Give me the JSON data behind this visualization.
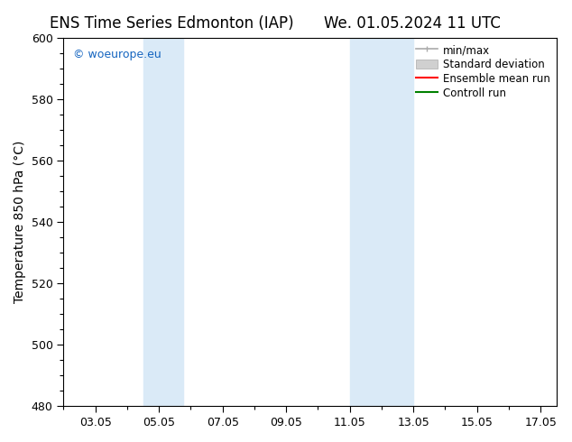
{
  "title_left": "ENS Time Series Edmonton (IAP)",
  "title_right": "We. 01.05.2024 11 UTC",
  "ylabel": "Temperature 850 hPa (°C)",
  "ylim": [
    480,
    600
  ],
  "yticks": [
    480,
    500,
    520,
    540,
    560,
    580,
    600
  ],
  "xlim": [
    2.0,
    17.5
  ],
  "xtick_labels": [
    "03.05",
    "05.05",
    "07.05",
    "09.05",
    "11.05",
    "13.05",
    "15.05",
    "17.05"
  ],
  "xtick_positions": [
    3,
    5,
    7,
    9,
    11,
    13,
    15,
    17
  ],
  "shaded_bands": [
    {
      "x_start": 4.5,
      "x_end": 5.75,
      "color": "#daeaf7"
    },
    {
      "x_start": 11.0,
      "x_end": 13.0,
      "color": "#daeaf7"
    }
  ],
  "watermark_text": "© woeurope.eu",
  "watermark_color": "#1565c0",
  "bg_color": "#ffffff",
  "plot_bg_color": "#ffffff",
  "title_fontsize": 12,
  "axis_label_fontsize": 10,
  "tick_fontsize": 9,
  "legend_fontsize": 8.5
}
